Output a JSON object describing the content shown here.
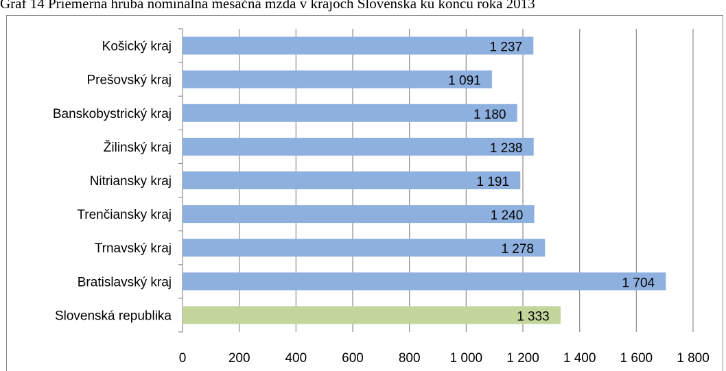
{
  "title": "Graf 14 Priemerná hrubá nominálna mesačná mzda v krajoch Slovenska ku koncu roka 2013",
  "chart_data": {
    "type": "bar",
    "orientation": "horizontal",
    "title": "Graf 14 Priemerná hrubá nominálna mesačná mzda v krajoch Slovenska ku koncu roka 2013",
    "xlabel": "",
    "ylabel": "",
    "xlim": [
      0,
      1800
    ],
    "grid": true,
    "legend": "none",
    "categories": [
      "Košický kraj",
      "Prešovský kraj",
      "Banskobystrický kraj",
      "Žilinský kraj",
      "Nitriansky kraj",
      "Trenčiansky kraj",
      "Trnavský kraj",
      "Bratislavský kraj",
      "Slovenská republika"
    ],
    "values": [
      1237,
      1091,
      1180,
      1238,
      1191,
      1240,
      1278,
      1704,
      1333
    ],
    "data_labels": [
      "1 237",
      "1 091",
      "1 180",
      "1 238",
      "1 191",
      "1 240",
      "1 278",
      "1 704",
      "1 333"
    ],
    "x_ticks": [
      0,
      200,
      400,
      600,
      800,
      1000,
      1200,
      1400,
      1600,
      1800
    ],
    "x_tick_labels": [
      "0",
      "200",
      "400",
      "600",
      "800",
      "1 000",
      "1 200",
      "1 400",
      "1 600",
      "1 800"
    ],
    "colors": {
      "regions": "#8eb0df",
      "republic": "#c2d69b",
      "gridline": "#8c8c8c"
    }
  }
}
